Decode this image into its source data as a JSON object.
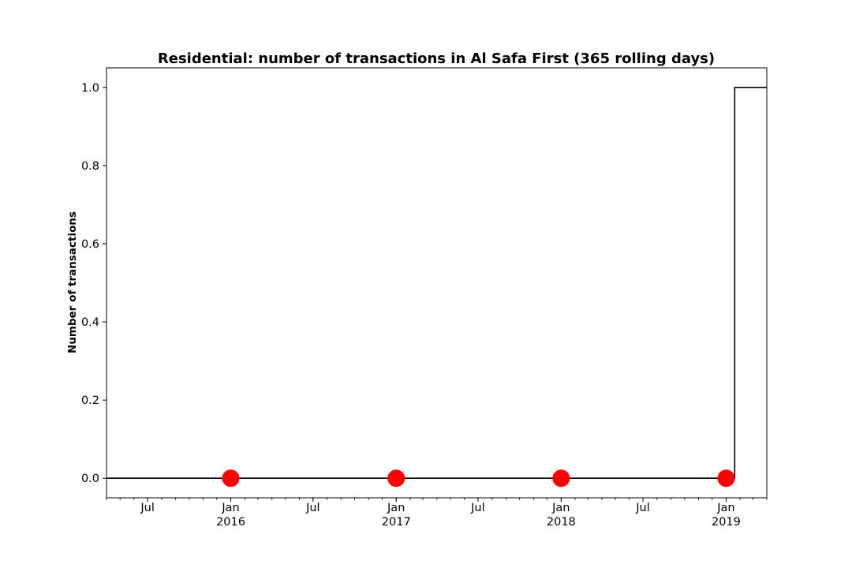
{
  "chart_data": {
    "type": "line",
    "title": "Residential: number of transactions in Al Safa First (365 rolling days)",
    "xlabel": "",
    "ylabel": "Number of transactions",
    "xlim": [
      "2015-04-01",
      "2019-04-01"
    ],
    "ylim": [
      -0.05,
      1.05
    ],
    "yticks": [
      0.0,
      0.2,
      0.4,
      0.6,
      0.8,
      1.0
    ],
    "ytick_labels": [
      "0.0",
      "0.2",
      "0.4",
      "0.6",
      "0.8",
      "1.0"
    ],
    "xticks_major": [
      {
        "date": "2015-07-01",
        "label": "Jul",
        "year": ""
      },
      {
        "date": "2016-01-01",
        "label": "Jan",
        "year": "2016"
      },
      {
        "date": "2016-07-01",
        "label": "Jul",
        "year": ""
      },
      {
        "date": "2017-01-01",
        "label": "Jan",
        "year": "2017"
      },
      {
        "date": "2017-07-01",
        "label": "Jul",
        "year": ""
      },
      {
        "date": "2018-01-01",
        "label": "Jan",
        "year": "2018"
      },
      {
        "date": "2018-07-01",
        "label": "Jul",
        "year": ""
      },
      {
        "date": "2019-01-01",
        "label": "Jan",
        "year": "2019"
      }
    ],
    "series": [
      {
        "style": "step-line",
        "color": "#000000",
        "points": [
          {
            "x": "2015-04-01",
            "y": 0
          },
          {
            "x": "2019-01-20",
            "y": 0
          },
          {
            "x": "2019-01-20",
            "y": 1
          },
          {
            "x": "2019-04-01",
            "y": 1
          }
        ]
      },
      {
        "style": "markers",
        "color": "#ff0000",
        "points": [
          {
            "x": "2016-01-01",
            "y": 0
          },
          {
            "x": "2017-01-01",
            "y": 0
          },
          {
            "x": "2018-01-01",
            "y": 0
          },
          {
            "x": "2019-01-01",
            "y": 0
          }
        ]
      }
    ],
    "grid": false,
    "legend": false
  }
}
